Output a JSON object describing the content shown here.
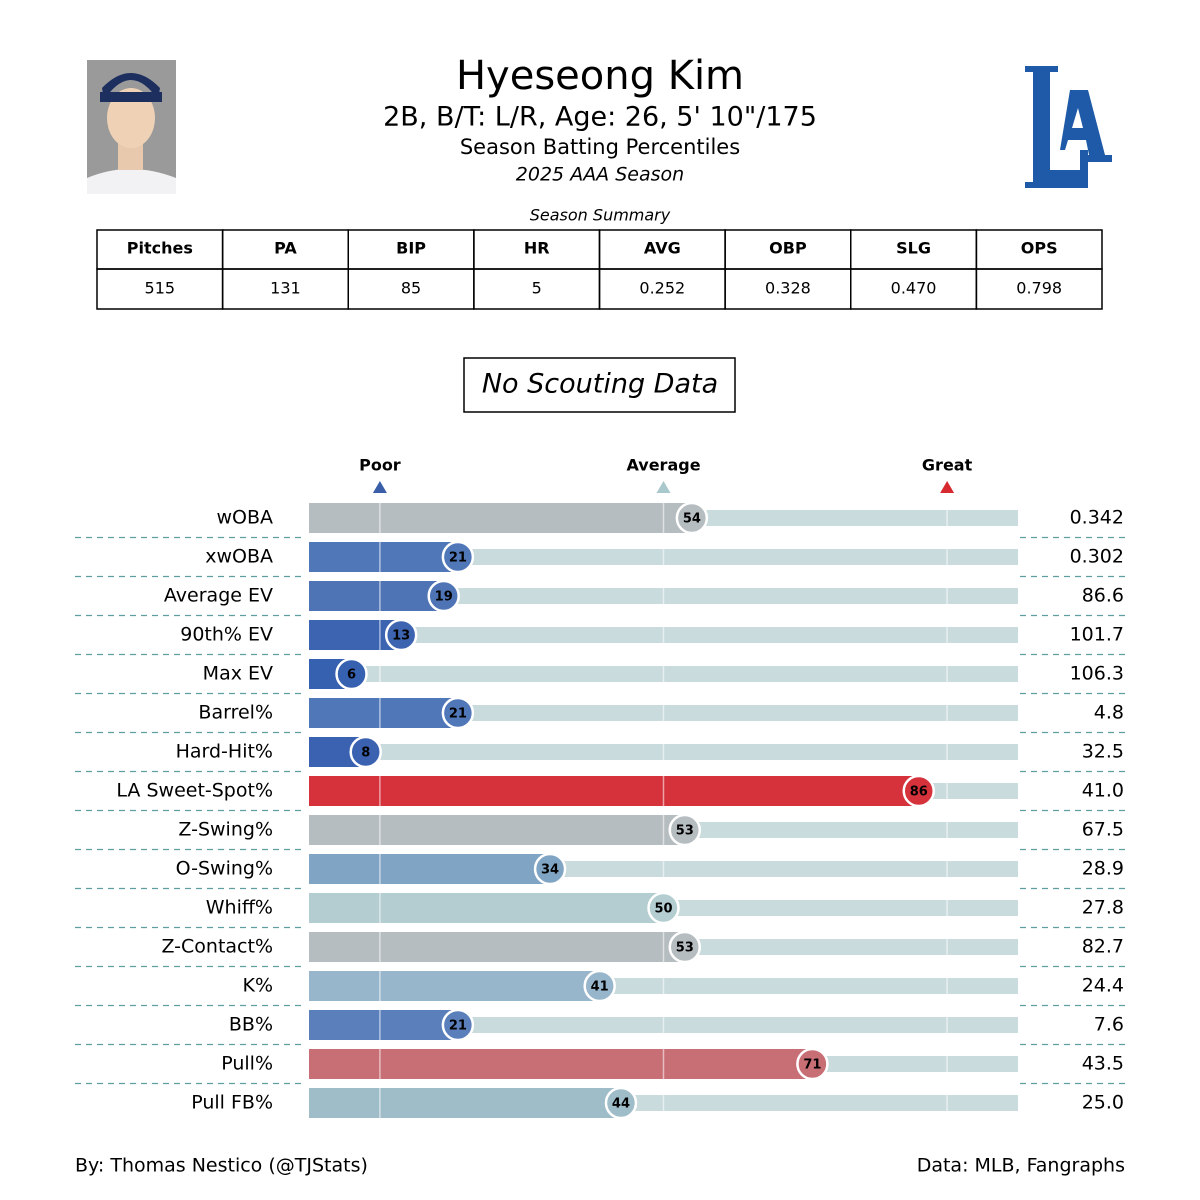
{
  "header": {
    "title": "Hyeseong Kim",
    "subtitle": "2B, B/T: L/R, Age: 26, 5' 10\"/175",
    "description": "Season Batting Percentiles",
    "season": "2025 AAA Season"
  },
  "summary": {
    "title": "Season Summary",
    "columns": [
      "Pitches",
      "PA",
      "BIP",
      "HR",
      "AVG",
      "OBP",
      "SLG",
      "OPS"
    ],
    "rows": [
      [
        "515",
        "131",
        "85",
        "5",
        "0.252",
        "0.328",
        "0.470",
        "0.798"
      ]
    ]
  },
  "note": "No Scouting Data",
  "chart_data": {
    "type": "bar",
    "orientation": "horizontal",
    "categories": [
      "wOBA",
      "xwOBA",
      "Average EV",
      "90th% EV",
      "Max EV",
      "Barrel%",
      "Hard-Hit%",
      "LA Sweet-Spot%",
      "Z-Swing%",
      "O-Swing%",
      "Whiff%",
      "Z-Contact%",
      "K%",
      "BB%",
      "Pull%",
      "Pull FB%"
    ],
    "values": [
      54,
      21,
      19,
      13,
      6,
      21,
      8,
      86,
      53,
      34,
      50,
      53,
      41,
      21,
      71,
      44
    ],
    "colors": [
      "#b6bdc0",
      "#5077b8",
      "#4f74b6",
      "#3d64b0",
      "#3660b0",
      "#5077b8",
      "#3a62b0",
      "#d5323b",
      "#b6bdc0",
      "#80a4c4",
      "#b4cdd1",
      "#b6bdc0",
      "#97b5cb",
      "#5a7fbb",
      "#c86e75",
      "#9fbcc9"
    ],
    "stat_labels": [
      "0.342",
      "0.302",
      "86.6",
      "101.7",
      "106.3",
      "4.8",
      "32.5",
      "41.0",
      "67.5",
      "28.9",
      "27.8",
      "82.7",
      "24.4",
      "7.6",
      "43.5",
      "25.0"
    ],
    "xlim": [
      0,
      100
    ],
    "xticks": [
      {
        "value": 10,
        "label": "Poor"
      },
      {
        "value": 50,
        "label": "Average"
      },
      {
        "value": 90,
        "label": "Great"
      }
    ],
    "tick_colors": [
      "#3a5fa8",
      "#a9c8cc",
      "#d62a30"
    ],
    "track_color": "#c9dbdd"
  },
  "footer": {
    "left": "By: Thomas Nestico (@TJStats)",
    "right": "Data: MLB, Fangraphs"
  }
}
